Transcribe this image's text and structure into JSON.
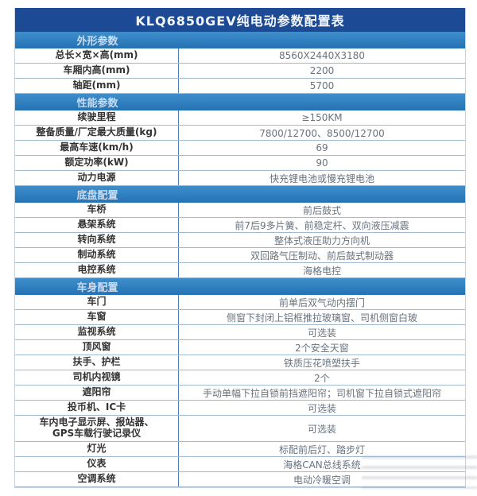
{
  "title": "KLQ6850GEV纯电动参数配置表",
  "colors": {
    "title_bar": "#1c4a94",
    "section_bar": "#2a7abb",
    "section_text": "#c9dcef",
    "row_divider": "#9fb9d0",
    "column_divider": "#4a7fb8",
    "label_text": "#333333",
    "value_text": "#68737e"
  },
  "sections": [
    {
      "name": "外形参数",
      "rows": [
        {
          "label": "总长×宽×高(mm)",
          "value": "8560X2440X3180"
        },
        {
          "label": "车厢内高(mm)",
          "value": "2200"
        },
        {
          "label": "轴距(mm)",
          "value": "5700"
        }
      ]
    },
    {
      "name": "性能参数",
      "rows": [
        {
          "label": "续驶里程",
          "value": "≥150KM"
        },
        {
          "label": "整备质量/厂定最大质量(kg)",
          "value": "7800/12700、8500/12700"
        },
        {
          "label": "最高车速(km/h)",
          "value": "69"
        },
        {
          "label": "额定功率(kW)",
          "value": "90"
        },
        {
          "label": "动力电源",
          "value": "快充锂电池或慢充锂电池"
        }
      ]
    },
    {
      "name": "底盘配置",
      "rows": [
        {
          "label": "车桥",
          "value": "前后鼓式"
        },
        {
          "label": "悬架系统",
          "value": "前7后9多片簧、前稳定杆、双向液压减震"
        },
        {
          "label": "转向系统",
          "value": "整体式液压助力方向机"
        },
        {
          "label": "制动系统",
          "value": "双回路气压制动、前后鼓式制动器"
        },
        {
          "label": "电控系统",
          "value": "海格电控"
        }
      ]
    },
    {
      "name": "车身配置",
      "rows": [
        {
          "label": "车门",
          "value": "前单后双气动内摆门"
        },
        {
          "label": "车窗",
          "value": "侧窗下封闭上铝框推拉玻璃窗、司机侧窗白玻"
        },
        {
          "label": "监视系统",
          "value": "可选装"
        },
        {
          "label": "顶风窗",
          "value": "2个安全天窗"
        },
        {
          "label": "扶手、护栏",
          "value": "铁质压花喷塑扶手"
        },
        {
          "label": "司机内视镜",
          "value": "2个"
        },
        {
          "label": "遮阳帘",
          "value": "手动单幅下拉自锁前挡遮阳帘；司机窗下拉自锁式遮阳帘"
        },
        {
          "label": "投币机、IC卡",
          "value": "可选装"
        },
        {
          "label": "车内电子显示屏、报站器、\nGPS车载行驶记录仪",
          "value": "可选装",
          "tall": true
        },
        {
          "label": "灯光",
          "value": "标配前后灯、踏步灯"
        },
        {
          "label": "仪表",
          "value": "海格CAN总线系统"
        },
        {
          "label": "空调系统",
          "value": "电动冷暖空调"
        }
      ]
    }
  ]
}
